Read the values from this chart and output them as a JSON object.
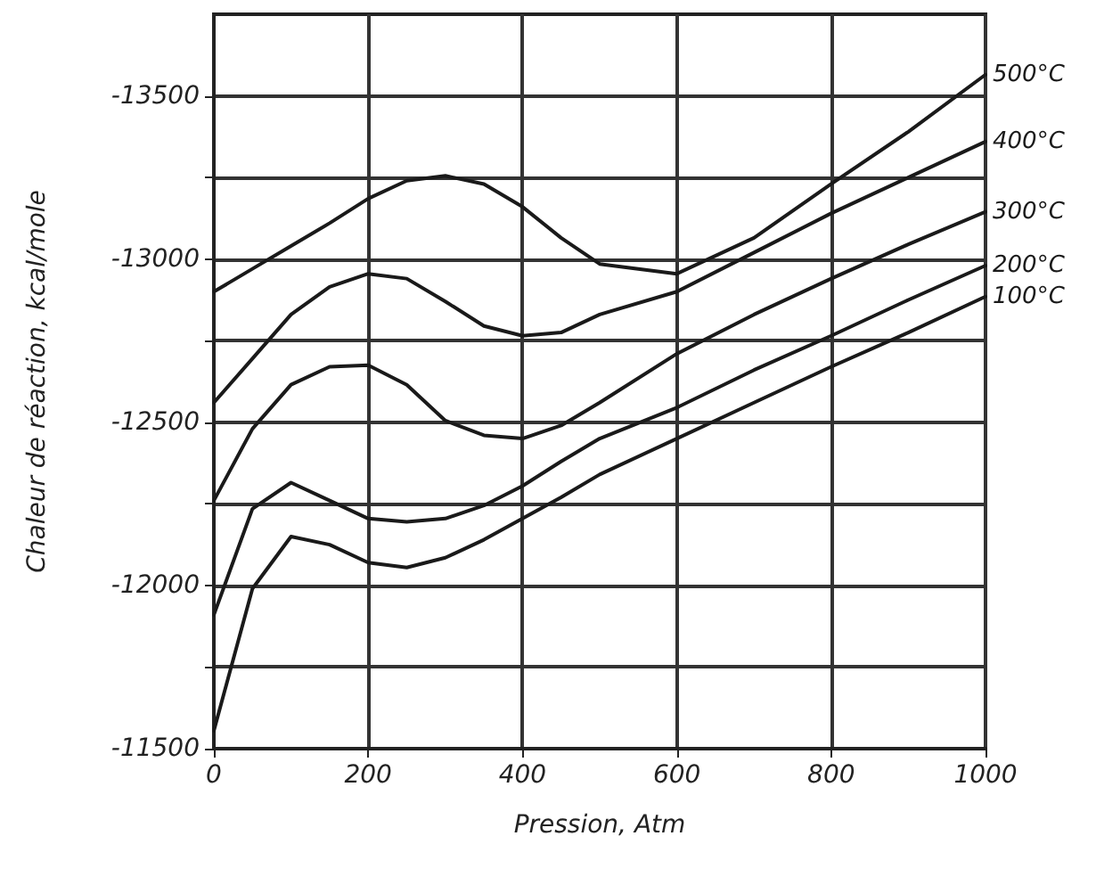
{
  "chart_data": {
    "type": "line",
    "xlabel": "Pression, Atm",
    "ylabel": "Chaleur de réaction, kcal/mole",
    "x": [
      0,
      50,
      100,
      150,
      200,
      250,
      300,
      350,
      400,
      450,
      500,
      600,
      700,
      800,
      900,
      1000
    ],
    "series": [
      {
        "name": "500°C",
        "color": "#1a1a1a",
        "values": [
          -12900,
          -12970,
          -13040,
          -13110,
          -13185,
          -13240,
          -13255,
          -13230,
          -13160,
          -13065,
          -12985,
          -12955,
          -13065,
          -13230,
          -13390,
          -13565
        ]
      },
      {
        "name": "400°C",
        "color": "#1a1a1a",
        "values": [
          -12560,
          -12695,
          -12830,
          -12915,
          -12955,
          -12940,
          -12870,
          -12795,
          -12765,
          -12775,
          -12830,
          -12900,
          -13020,
          -13140,
          -13250,
          -13360
        ]
      },
      {
        "name": "300°C",
        "color": "#1a1a1a",
        "values": [
          -12260,
          -12480,
          -12615,
          -12670,
          -12675,
          -12615,
          -12505,
          -12460,
          -12450,
          -12490,
          -12560,
          -12710,
          -12830,
          -12940,
          -13045,
          -13145
        ]
      },
      {
        "name": "200°C",
        "color": "#1a1a1a",
        "values": [
          -11910,
          -12235,
          -12315,
          -12260,
          -12205,
          -12195,
          -12205,
          -12245,
          -12305,
          -12380,
          -12450,
          -12545,
          -12660,
          -12765,
          -12875,
          -12980
        ]
      },
      {
        "name": "100°C",
        "color": "#1a1a1a",
        "values": [
          -11555,
          -11990,
          -12150,
          -12125,
          -12070,
          -12055,
          -12085,
          -12140,
          -12205,
          -12270,
          -12340,
          -12450,
          -12560,
          -12670,
          -12775,
          -12885
        ]
      }
    ],
    "xlim": [
      0,
      1000
    ],
    "xticks": [
      0,
      200,
      400,
      600,
      800,
      1000
    ],
    "ylim": [
      -11500,
      -13750
    ],
    "yticks": [
      -11500,
      {
        "value": -11750,
        "label": null
      },
      -12000,
      {
        "value": -12250,
        "label": null
      },
      -12500,
      {
        "value": -12750,
        "label": null
      },
      -13000,
      {
        "value": -13250,
        "label": null
      },
      -13500
    ],
    "grid": true,
    "marker": "none",
    "line_style": "solid",
    "legend": false
  }
}
